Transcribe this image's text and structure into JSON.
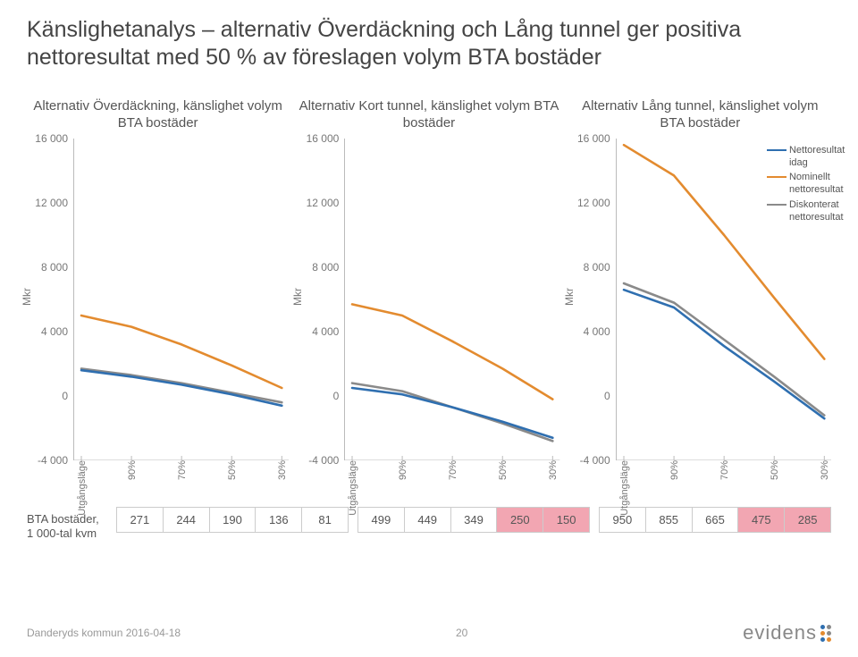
{
  "title": "Känslighetanalys – alternativ Överdäckning och Lång tunnel ger positiva nettoresultat med 50 % av föreslagen volym BTA bostäder",
  "ylabel": "Mkr",
  "yticks": [
    -4000,
    0,
    4000,
    8000,
    12000,
    16000
  ],
  "ytick_labels": [
    "-4 000",
    "0",
    "4 000",
    "8 000",
    "12 000",
    "16 000"
  ],
  "ylim": [
    -4000,
    16000
  ],
  "x_categories": [
    "Utgångsläge",
    "90%",
    "70%",
    "50%",
    "30%"
  ],
  "colors": {
    "netto_idag": "#2f6fb0",
    "nominellt": "#e38b2f",
    "diskonterat": "#8a8a8a",
    "axis": "#bbbbbb",
    "text": "#555555",
    "highlight": "#f2a6b2"
  },
  "line_width": 2.6,
  "legend": [
    {
      "label": "Nettoresultat idag",
      "color_key": "netto_idag"
    },
    {
      "label": "Nominellt nettoresultat",
      "color_key": "nominellt"
    },
    {
      "label": "Diskonterat nettoresultat",
      "color_key": "diskonterat"
    }
  ],
  "charts": [
    {
      "title": "Alternativ Överdäckning, känslighet volym BTA bostäder",
      "series": {
        "netto_idag": [
          1600,
          1200,
          700,
          100,
          -600
        ],
        "nominellt": [
          5000,
          4300,
          3200,
          1900,
          500
        ],
        "diskonterat": [
          1700,
          1300,
          800,
          200,
          -400
        ]
      }
    },
    {
      "title": "Alternativ Kort tunnel, känslighet volym BTA bostäder",
      "series": {
        "netto_idag": [
          500,
          100,
          -700,
          -1600,
          -2600
        ],
        "nominellt": [
          5700,
          5000,
          3400,
          1700,
          -200
        ],
        "diskonterat": [
          800,
          300,
          -700,
          -1700,
          -2800
        ]
      }
    },
    {
      "title": "Alternativ Lång tunnel, känslighet volym BTA bostäder",
      "series": {
        "netto_idag": [
          6600,
          5500,
          3100,
          900,
          -1400
        ],
        "nominellt": [
          15600,
          13700,
          10000,
          6100,
          2300
        ],
        "diskonterat": [
          7000,
          5800,
          3500,
          1200,
          -1200
        ]
      },
      "show_legend": true
    }
  ],
  "table_label": "BTA bostäder, 1 000-tal kvm",
  "tables": [
    {
      "cells": [
        "271",
        "244",
        "190",
        "136",
        "81"
      ],
      "highlight": []
    },
    {
      "cells": [
        "499",
        "449",
        "349",
        "250",
        "150"
      ],
      "highlight": [
        3,
        4
      ]
    },
    {
      "cells": [
        "950",
        "855",
        "665",
        "475",
        "285"
      ],
      "highlight": [
        3,
        4
      ]
    }
  ],
  "footer": {
    "left": "Danderyds kommun 2016-04-18",
    "page": "20",
    "logo_text": "evidens",
    "logo_dots": [
      "#2f6fb0",
      "#8a8a8a",
      "#e38b2f",
      "#8a8a8a",
      "#2f6fb0",
      "#e38b2f"
    ]
  }
}
